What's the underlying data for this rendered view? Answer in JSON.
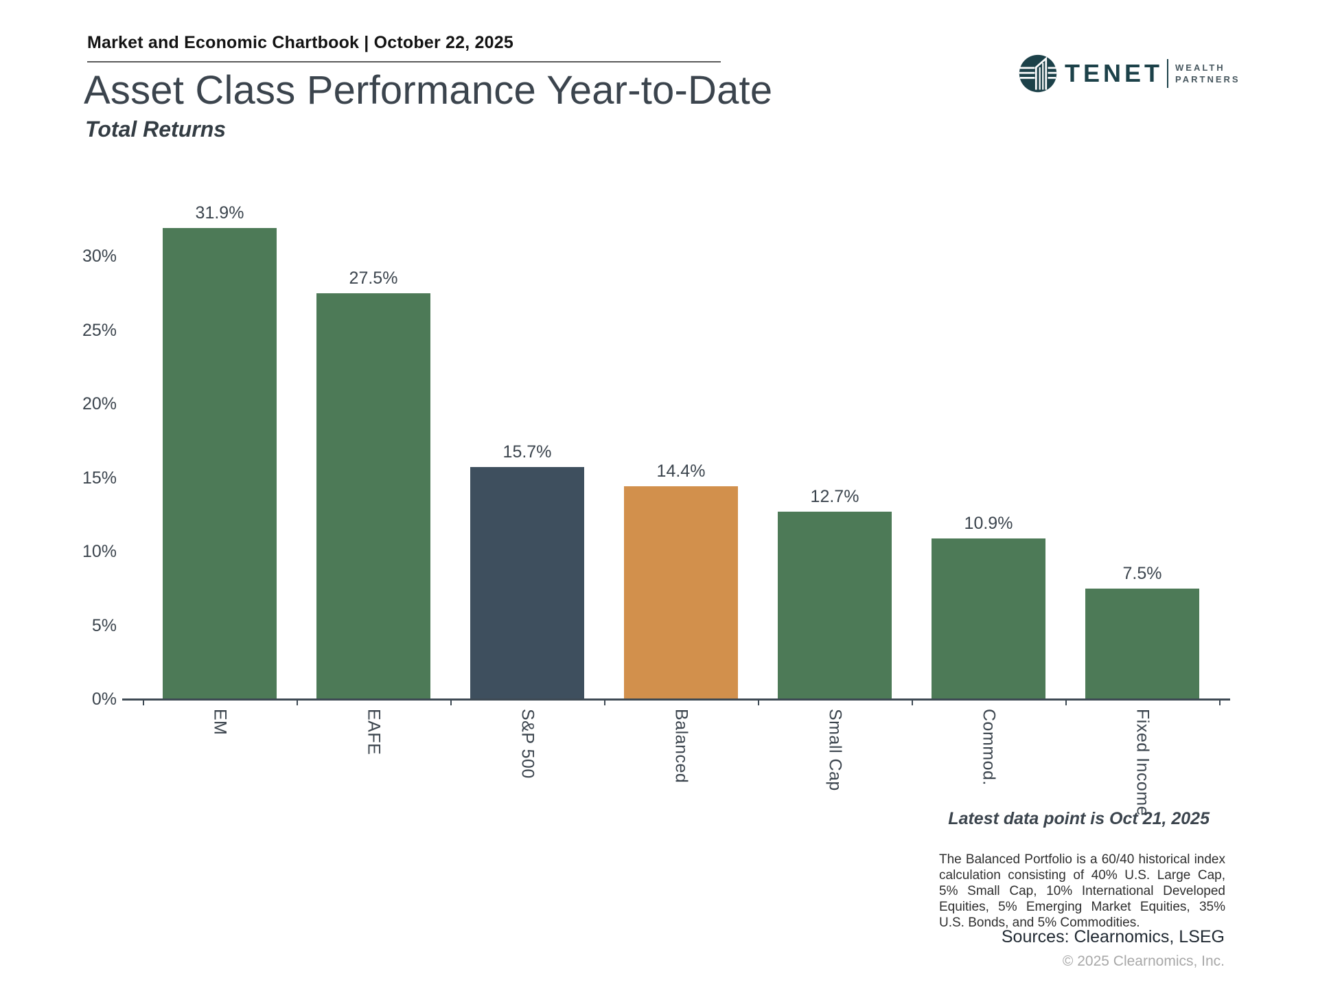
{
  "header": {
    "chartbook_title": "Market and Economic Chartbook | October 22, 2025"
  },
  "logo": {
    "brand": "TENET",
    "suffix_line1": "WEALTH",
    "suffix_line2": "PARTNERS",
    "color": "#1c4149"
  },
  "title": "Asset Class Performance Year-to-Date",
  "subtitle": "Total Returns",
  "chart_data": {
    "type": "bar",
    "title": "Asset Class Performance Year-to-Date",
    "subtitle": "Total Returns",
    "categories": [
      "EM",
      "EAFE",
      "S&P 500",
      "Balanced",
      "Small Cap",
      "Commod.",
      "Fixed Income"
    ],
    "values": [
      31.9,
      27.5,
      15.7,
      14.4,
      12.7,
      10.9,
      7.5
    ],
    "value_labels": [
      "31.9%",
      "27.5%",
      "15.7%",
      "14.4%",
      "12.7%",
      "10.9%",
      "7.5%"
    ],
    "bar_colors": [
      "#4d7a57",
      "#4d7a57",
      "#3e4f5e",
      "#d2904c",
      "#4d7a57",
      "#4d7a57",
      "#4d7a57"
    ],
    "xlabel": "",
    "ylabel": "",
    "ylim": [
      0,
      34.6
    ],
    "yticks": [
      0,
      5,
      10,
      15,
      20,
      25,
      30
    ],
    "ytick_labels": [
      "0%",
      "5%",
      "10%",
      "15%",
      "20%",
      "25%",
      "30%"
    ],
    "grid": false,
    "legend": "none",
    "bar_label_position": "above",
    "category_label_rotation": 90
  },
  "annotations": {
    "latest_data_note": "Latest data point is Oct 21, 2025",
    "footnote": "The Balanced Portfolio is a 60/40 historical index calculation consisting of 40% U.S. Large Cap, 5% Small Cap, 10% International Developed Equities, 5% Emerging Market Equities, 35% U.S. Bonds, and 5% Commodities.",
    "sources": "Sources: Clearnomics, LSEG",
    "copyright": "© 2025 Clearnomics, Inc."
  },
  "colors": {
    "green_bar": "#4d7a57",
    "navy_bar": "#3e4f5e",
    "orange_bar": "#d2904c",
    "axis": "#3e4a54",
    "text_slate": "#3b444d",
    "header_text": "#131313",
    "logo_teal": "#1c4149",
    "copyright_gray": "#a8a8a8"
  }
}
